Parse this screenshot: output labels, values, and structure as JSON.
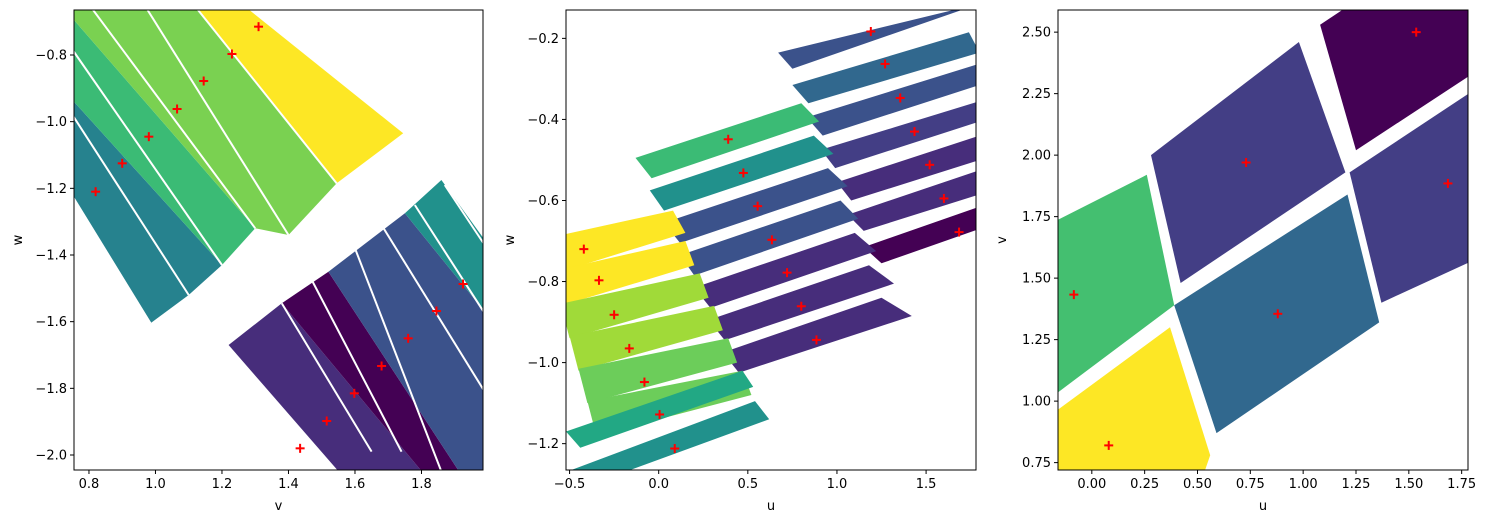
{
  "chart_data": [
    {
      "type": "polygon-map",
      "xlabel": "v",
      "ylabel": "w",
      "xlim": [
        0.755,
        1.985
      ],
      "ylim": [
        -2.045,
        -0.665
      ],
      "xticks": [
        0.8,
        1.0,
        1.2,
        1.4,
        1.6,
        1.8
      ],
      "xtick_labels": [
        "0.8",
        "1.0",
        "1.2",
        "1.4",
        "1.6",
        "1.8"
      ],
      "yticks": [
        -2.0,
        -1.8,
        -1.6,
        -1.4,
        -1.2,
        -1.0,
        -0.8
      ],
      "ytick_labels": [
        "−2.0",
        "−1.8",
        "−1.6",
        "−1.4",
        "−1.2",
        "−1.0",
        "−0.8"
      ],
      "polygons": [
        {
          "color": "#26828e",
          "points": [
            [
              0.65,
              -1.06
            ],
            [
              0.65,
              -0.825
            ],
            [
              1.2,
              -1.43
            ],
            [
              1.1,
              -1.52
            ],
            [
              0.985,
              -1.605
            ]
          ]
        },
        {
          "color": "#3bbb75",
          "points": [
            [
              0.65,
              -0.825
            ],
            [
              0.65,
              -0.655
            ],
            [
              0.72,
              -0.655
            ],
            [
              1.3,
              -1.32
            ],
            [
              1.2,
              -1.43
            ]
          ]
        },
        {
          "color": "#7ad151",
          "points": [
            [
              0.72,
              -0.655
            ],
            [
              1.12,
              -0.655
            ],
            [
              1.545,
              -1.185
            ],
            [
              1.4,
              -1.34
            ],
            [
              1.3,
              -1.32
            ]
          ]
        },
        {
          "color": "#fde725",
          "points": [
            [
              1.12,
              -0.655
            ],
            [
              1.27,
              -0.655
            ],
            [
              1.745,
              -1.035
            ],
            [
              1.545,
              -1.185
            ]
          ]
        },
        {
          "color": "#472d7b",
          "points": [
            [
              1.22,
              -1.67
            ],
            [
              1.38,
              -1.545
            ],
            [
              1.81,
              -2.06
            ],
            [
              1.56,
              -2.06
            ]
          ]
        },
        {
          "color": "#440154",
          "points": [
            [
              1.38,
              -1.545
            ],
            [
              1.52,
              -1.45
            ],
            [
              1.92,
              -2.06
            ],
            [
              1.81,
              -2.06
            ]
          ]
        },
        {
          "color": "#3b528b",
          "points": [
            [
              1.52,
              -1.45
            ],
            [
              1.75,
              -1.275
            ],
            [
              1.99,
              -1.57
            ],
            [
              1.99,
              -2.06
            ],
            [
              1.92,
              -2.06
            ]
          ]
        },
        {
          "color": "#21918c",
          "points": [
            [
              1.75,
              -1.275
            ],
            [
              1.86,
              -1.175
            ],
            [
              1.99,
              -1.355
            ],
            [
              1.99,
              -1.57
            ]
          ]
        }
      ],
      "separators": [
        [
          [
            0.65,
            -1.06
          ],
          [
            0.985,
            -1.605
          ]
        ],
        [
          [
            0.65,
            -0.825
          ],
          [
            1.1,
            -1.52
          ]
        ],
        [
          [
            0.65,
            -0.64
          ],
          [
            1.2,
            -1.43
          ]
        ],
        [
          [
            0.805,
            -0.655
          ],
          [
            1.3,
            -1.32
          ]
        ],
        [
          [
            0.97,
            -0.655
          ],
          [
            1.4,
            -1.34
          ]
        ],
        [
          [
            1.12,
            -0.655
          ],
          [
            1.545,
            -1.185
          ]
        ],
        [
          [
            1.38,
            -1.545
          ],
          [
            1.65,
            -1.99
          ]
        ],
        [
          [
            1.47,
            -1.475
          ],
          [
            1.74,
            -1.99
          ]
        ],
        [
          [
            1.6,
            -1.38
          ],
          [
            1.86,
            -2.05
          ]
        ],
        [
          [
            1.68,
            -1.31
          ],
          [
            1.99,
            -1.81
          ]
        ],
        [
          [
            1.78,
            -1.25
          ],
          [
            1.99,
            -1.575
          ]
        ],
        [
          [
            1.87,
            -1.19
          ],
          [
            1.99,
            -1.37
          ]
        ]
      ],
      "markers": [
        [
          0.82,
          -1.21
        ],
        [
          0.9,
          -1.125
        ],
        [
          0.98,
          -1.045
        ],
        [
          1.065,
          -0.962
        ],
        [
          1.145,
          -0.878
        ],
        [
          1.23,
          -0.797
        ],
        [
          1.31,
          -0.715
        ],
        [
          1.435,
          -1.98
        ],
        [
          1.515,
          -1.898
        ],
        [
          1.598,
          -1.815
        ],
        [
          1.68,
          -1.733
        ],
        [
          1.76,
          -1.65
        ],
        [
          1.845,
          -1.568
        ],
        [
          1.925,
          -1.487
        ]
      ]
    },
    {
      "type": "polygon-map",
      "xlabel": "u",
      "ylabel": "w",
      "xlim": [
        -0.52,
        1.78
      ],
      "ylim": [
        -1.265,
        -0.13
      ],
      "xticks": [
        -0.5,
        0.0,
        0.5,
        1.0,
        1.5
      ],
      "xtick_labels": [
        "−0.5",
        "0.0",
        "0.5",
        "1.0",
        "1.5"
      ],
      "yticks": [
        -1.2,
        -1.0,
        -0.8,
        -0.6,
        -0.4,
        -0.2
      ],
      "ytick_labels": [
        "−1.2",
        "−1.0",
        "−0.8",
        "−0.6",
        "−0.4",
        "−0.2"
      ],
      "polygons": [
        {
          "color": "#3b528b",
          "points": [
            [
              0.67,
              -0.235
            ],
            [
              1.7,
              -0.125
            ],
            [
              1.7,
              -0.13
            ],
            [
              0.75,
              -0.275
            ]
          ]
        },
        {
          "color": "#31688e",
          "points": [
            [
              0.75,
              -0.315
            ],
            [
              1.74,
              -0.185
            ],
            [
              1.8,
              -0.235
            ],
            [
              0.84,
              -0.36
            ]
          ]
        },
        {
          "color": "#3b528b",
          "points": [
            [
              0.83,
              -0.395
            ],
            [
              1.78,
              -0.265
            ],
            [
              1.8,
              -0.315
            ],
            [
              0.92,
              -0.44
            ]
          ]
        },
        {
          "color": "#433e85",
          "points": [
            [
              0.91,
              -0.475
            ],
            [
              1.8,
              -0.355
            ],
            [
              1.8,
              -0.405
            ],
            [
              0.99,
              -0.52
            ]
          ]
        },
        {
          "color": "#472d7b",
          "points": [
            [
              1.0,
              -0.555
            ],
            [
              1.8,
              -0.44
            ],
            [
              1.8,
              -0.5
            ],
            [
              1.08,
              -0.6
            ]
          ]
        },
        {
          "color": "#472d7b",
          "points": [
            [
              1.06,
              -0.635
            ],
            [
              1.8,
              -0.525
            ],
            [
              1.8,
              -0.585
            ],
            [
              1.15,
              -0.675
            ]
          ]
        },
        {
          "color": "#440154",
          "points": [
            [
              1.15,
              -0.715
            ],
            [
              1.8,
              -0.615
            ],
            [
              1.8,
              -0.67
            ],
            [
              1.25,
              -0.755
            ]
          ]
        },
        {
          "color": "#3bbb75",
          "points": [
            [
              -0.13,
              -0.495
            ],
            [
              0.8,
              -0.36
            ],
            [
              0.9,
              -0.405
            ],
            [
              -0.04,
              -0.545
            ]
          ]
        },
        {
          "color": "#21918c",
          "points": [
            [
              -0.05,
              -0.575
            ],
            [
              0.87,
              -0.44
            ],
            [
              0.98,
              -0.485
            ],
            [
              0.03,
              -0.625
            ]
          ]
        },
        {
          "color": "#3b528b",
          "points": [
            [
              0.03,
              -0.655
            ],
            [
              0.95,
              -0.52
            ],
            [
              1.06,
              -0.565
            ],
            [
              0.12,
              -0.705
            ]
          ]
        },
        {
          "color": "#3b528b",
          "points": [
            [
              0.12,
              -0.735
            ],
            [
              1.02,
              -0.6
            ],
            [
              1.12,
              -0.645
            ],
            [
              0.2,
              -0.785
            ]
          ]
        },
        {
          "color": "#472d7b",
          "points": [
            [
              0.2,
              -0.815
            ],
            [
              1.1,
              -0.68
            ],
            [
              1.22,
              -0.725
            ],
            [
              0.29,
              -0.865
            ]
          ]
        },
        {
          "color": "#472d7b",
          "points": [
            [
              0.28,
              -0.895
            ],
            [
              1.18,
              -0.76
            ],
            [
              1.32,
              -0.805
            ],
            [
              0.37,
              -0.945
            ]
          ]
        },
        {
          "color": "#472d7b",
          "points": [
            [
              0.36,
              -0.975
            ],
            [
              1.25,
              -0.84
            ],
            [
              1.42,
              -0.885
            ],
            [
              0.45,
              -1.025
            ]
          ]
        },
        {
          "color": "#fde725",
          "points": [
            [
              -0.65,
              -0.695
            ],
            [
              0.08,
              -0.625
            ],
            [
              0.15,
              -0.68
            ],
            [
              -0.58,
              -0.78
            ]
          ]
        },
        {
          "color": "#fde725",
          "points": [
            [
              -0.6,
              -0.775
            ],
            [
              0.15,
              -0.7
            ],
            [
              0.2,
              -0.76
            ],
            [
              -0.55,
              -0.86
            ]
          ]
        },
        {
          "color": "#a0da39",
          "points": [
            [
              -0.55,
              -0.855
            ],
            [
              0.23,
              -0.78
            ],
            [
              0.28,
              -0.84
            ],
            [
              -0.5,
              -0.94
            ]
          ]
        },
        {
          "color": "#a0da39",
          "points": [
            [
              -0.5,
              -0.935
            ],
            [
              0.31,
              -0.86
            ],
            [
              0.36,
              -0.92
            ],
            [
              -0.45,
              -1.02
            ]
          ]
        },
        {
          "color": "#6ccd5a",
          "points": [
            [
              -0.45,
              -1.015
            ],
            [
              0.39,
              -0.94
            ],
            [
              0.44,
              -1.0
            ],
            [
              -0.4,
              -1.1
            ]
          ]
        },
        {
          "color": "#6ccd5a",
          "points": [
            [
              -0.4,
              -1.095
            ],
            [
              0.47,
              -1.02
            ],
            [
              0.52,
              -1.08
            ],
            [
              -0.35,
              -1.18
            ]
          ]
        },
        {
          "color": "#22a884",
          "points": [
            [
              -0.52,
              -1.17
            ],
            [
              0.47,
              -1.02
            ],
            [
              0.53,
              -1.06
            ],
            [
              -0.44,
              -1.21
            ]
          ]
        },
        {
          "color": "#21918c",
          "points": [
            [
              -0.52,
              -1.27
            ],
            [
              0.54,
              -1.095
            ],
            [
              0.62,
              -1.14
            ],
            [
              -0.44,
              -1.31
            ]
          ]
        }
      ],
      "markers": [
        [
          -0.42,
          -0.72
        ],
        [
          -0.335,
          -0.797
        ],
        [
          -0.25,
          -0.882
        ],
        [
          -0.165,
          -0.965
        ],
        [
          -0.08,
          -1.048
        ],
        [
          0.005,
          -1.128
        ],
        [
          0.09,
          -1.212
        ],
        [
          0.39,
          -0.449
        ],
        [
          0.475,
          -0.532
        ],
        [
          0.555,
          -0.614
        ],
        [
          0.635,
          -0.697
        ],
        [
          0.72,
          -0.778
        ],
        [
          0.8,
          -0.861
        ],
        [
          0.885,
          -0.944
        ],
        [
          1.19,
          -0.183
        ],
        [
          1.27,
          -0.263
        ],
        [
          1.355,
          -0.347
        ],
        [
          1.435,
          -0.43
        ],
        [
          1.52,
          -0.512
        ],
        [
          1.6,
          -0.595
        ],
        [
          1.685,
          -0.678
        ]
      ]
    },
    {
      "type": "polygon-map",
      "xlabel": "u",
      "ylabel": "v",
      "xlim": [
        -0.16,
        1.78
      ],
      "ylim": [
        0.72,
        2.59
      ],
      "xticks": [
        0.0,
        0.25,
        0.5,
        0.75,
        1.0,
        1.25,
        1.5,
        1.75
      ],
      "xtick_labels": [
        "0.00",
        "0.25",
        "0.50",
        "0.75",
        "1.00",
        "1.25",
        "1.50",
        "1.75"
      ],
      "yticks": [
        0.75,
        1.0,
        1.25,
        1.5,
        1.75,
        2.0,
        2.25,
        2.5
      ],
      "ytick_labels": [
        "0.75",
        "1.00",
        "1.25",
        "1.50",
        "1.75",
        "2.00",
        "2.25",
        "2.50"
      ],
      "polygons": [
        {
          "color": "#44bf70",
          "points": [
            [
              -0.2,
              1.01
            ],
            [
              -0.2,
              1.72
            ],
            [
              0.26,
              1.92
            ],
            [
              0.39,
              1.39
            ]
          ]
        },
        {
          "color": "#fde725",
          "points": [
            [
              -0.2,
              0.94
            ],
            [
              0.37,
              1.3
            ],
            [
              0.56,
              0.78
            ],
            [
              0.52,
              0.68
            ],
            [
              -0.2,
              0.68
            ]
          ]
        },
        {
          "color": "#433e85",
          "points": [
            [
              0.28,
              2.0
            ],
            [
              0.98,
              2.46
            ],
            [
              1.2,
              1.93
            ],
            [
              0.42,
              1.48
            ]
          ]
        },
        {
          "color": "#31688e",
          "points": [
            [
              0.39,
              1.39
            ],
            [
              1.21,
              1.84
            ],
            [
              1.36,
              1.32
            ],
            [
              0.59,
              0.87
            ]
          ]
        },
        {
          "color": "#440154",
          "points": [
            [
              1.08,
              2.53
            ],
            [
              1.29,
              2.65
            ],
            [
              1.8,
              2.65
            ],
            [
              1.8,
              2.33
            ],
            [
              1.25,
              2.02
            ]
          ]
        },
        {
          "color": "#433e85",
          "points": [
            [
              1.22,
              1.93
            ],
            [
              1.8,
              2.26
            ],
            [
              1.8,
              1.57
            ],
            [
              1.37,
              1.4
            ]
          ]
        }
      ],
      "markers": [
        [
          -0.085,
          1.433
        ],
        [
          0.08,
          0.82
        ],
        [
          0.73,
          1.97
        ],
        [
          0.88,
          1.355
        ],
        [
          1.535,
          2.5
        ],
        [
          1.685,
          1.885
        ]
      ]
    }
  ]
}
